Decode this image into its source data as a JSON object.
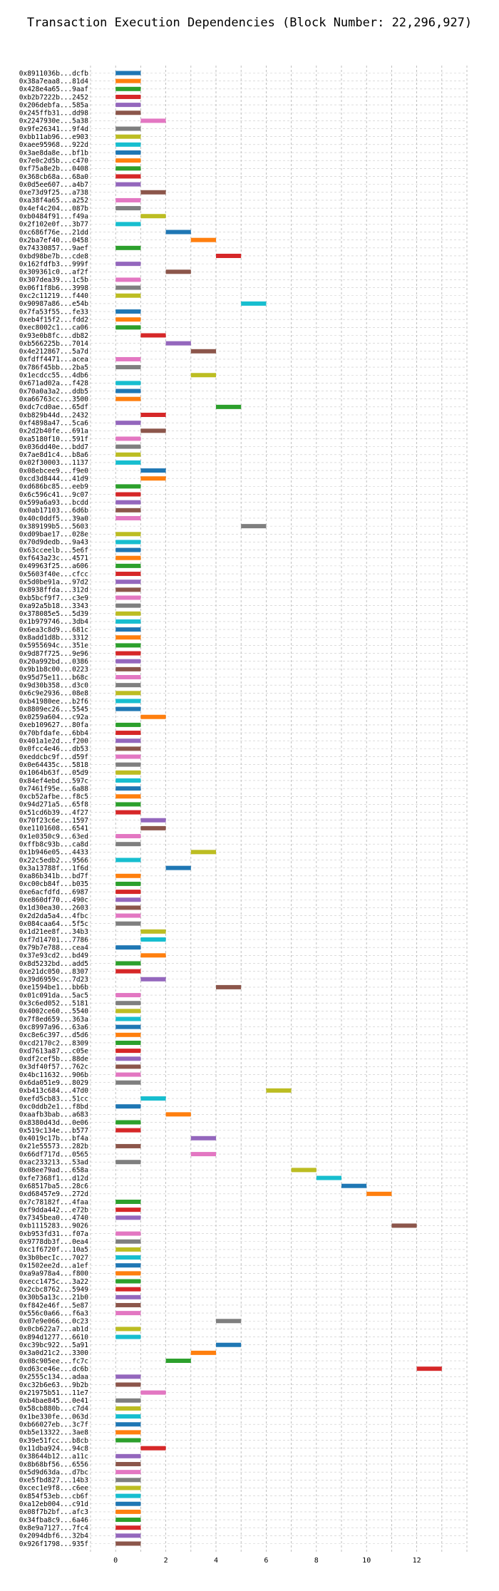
{
  "chart_data": {
    "type": "bar",
    "orientation": "horizontal",
    "title": "Transaction Execution Dependencies (Block Number: 22,296,927)",
    "xlabel": "",
    "ylabel": "",
    "xlim": [
      -1,
      14
    ],
    "xticks": [
      0,
      2,
      4,
      6,
      8,
      10,
      12
    ],
    "grid": true,
    "grid_style": "dashed",
    "bar_length": 1,
    "palette": [
      "#1f77b4",
      "#ff7f0e",
      "#2ca02c",
      "#d62728",
      "#9467bd",
      "#8c564b",
      "#e377c2",
      "#7f7f7f",
      "#bcbd22",
      "#17becf"
    ],
    "transactions": [
      {
        "label": "0x8911036b...dcfb",
        "start": 0
      },
      {
        "label": "0x38a7eaa8...81d4",
        "start": 0
      },
      {
        "label": "0x428e4a65...9aaf",
        "start": 0
      },
      {
        "label": "0xb2b7222b...2452",
        "start": 0
      },
      {
        "label": "0x206debfa...585a",
        "start": 0
      },
      {
        "label": "0x245ffb31...dd98",
        "start": 0
      },
      {
        "label": "0x2247930e...5a38",
        "start": 1
      },
      {
        "label": "0x9fe26341...9f4d",
        "start": 0
      },
      {
        "label": "0xbb11ab96...e903",
        "start": 0
      },
      {
        "label": "0xaee95968...922d",
        "start": 0
      },
      {
        "label": "0x3ae8da8e...bf1b",
        "start": 0
      },
      {
        "label": "0x7e0c2d5b...c470",
        "start": 0
      },
      {
        "label": "0xf75a8e2b...0408",
        "start": 0
      },
      {
        "label": "0x368cb68a...68a0",
        "start": 0
      },
      {
        "label": "0x0d5ee607...a4b7",
        "start": 0
      },
      {
        "label": "0xe73d9f25...a738",
        "start": 1
      },
      {
        "label": "0xa38f4a65...a252",
        "start": 0
      },
      {
        "label": "0x4ef4c204...087b",
        "start": 0
      },
      {
        "label": "0xb0484f91...f49a",
        "start": 1
      },
      {
        "label": "0x2f102e0f...3b77",
        "start": 0
      },
      {
        "label": "0xc686f76e...21dd",
        "start": 2
      },
      {
        "label": "0x2ba7ef40...0458",
        "start": 3
      },
      {
        "label": "0x74330857...9aef",
        "start": 0
      },
      {
        "label": "0xbd98be7b...cde8",
        "start": 4
      },
      {
        "label": "0x162fdfb3...999f",
        "start": 0
      },
      {
        "label": "0x309361c0...af2f",
        "start": 2
      },
      {
        "label": "0x307dea39...1c5b",
        "start": 0
      },
      {
        "label": "0x06f1f8b6...3998",
        "start": 0
      },
      {
        "label": "0xc2c11219...f440",
        "start": 0
      },
      {
        "label": "0x90987a86...e54b",
        "start": 5
      },
      {
        "label": "0x7fa53f55...fe33",
        "start": 0
      },
      {
        "label": "0xeb4f15f2...fdd2",
        "start": 0
      },
      {
        "label": "0xec8002c1...ca06",
        "start": 0
      },
      {
        "label": "0x93e0b8fc...db82",
        "start": 1
      },
      {
        "label": "0xb566225b...7014",
        "start": 2
      },
      {
        "label": "0x4e212867...5a7d",
        "start": 3
      },
      {
        "label": "0xfdff4471...acea",
        "start": 0
      },
      {
        "label": "0x786f45bb...2ba5",
        "start": 0
      },
      {
        "label": "0x1ecdcc55...4db6",
        "start": 3
      },
      {
        "label": "0x671ad02a...f428",
        "start": 0
      },
      {
        "label": "0x70a0a3a2...ddb5",
        "start": 0
      },
      {
        "label": "0xa66763cc...3500",
        "start": 0
      },
      {
        "label": "0xdc7cd0ae...65df",
        "start": 4
      },
      {
        "label": "0xb829b44d...2432",
        "start": 1
      },
      {
        "label": "0xf4898a47...5ca6",
        "start": 0
      },
      {
        "label": "0x2d2b40fe...691a",
        "start": 1
      },
      {
        "label": "0xa5180f10...591f",
        "start": 0
      },
      {
        "label": "0x036dd40e...bdd7",
        "start": 0
      },
      {
        "label": "0x7ae8d1c4...b8a6",
        "start": 0
      },
      {
        "label": "0x02f30003...1137",
        "start": 0
      },
      {
        "label": "0x08ebcee9...f9e0",
        "start": 1
      },
      {
        "label": "0xcd3d8444...41d9",
        "start": 1
      },
      {
        "label": "0xd686bc85...eeb9",
        "start": 0
      },
      {
        "label": "0x6c596c41...9c07",
        "start": 0
      },
      {
        "label": "0x599a6a93...bcdd",
        "start": 0
      },
      {
        "label": "0x0ab17103...6d6b",
        "start": 0
      },
      {
        "label": "0x40c0ddf5...39a0",
        "start": 0
      },
      {
        "label": "0x389199b5...5603",
        "start": 5
      },
      {
        "label": "0xd09bae17...028e",
        "start": 0
      },
      {
        "label": "0x70d9dedb...9a43",
        "start": 0
      },
      {
        "label": "0x63cceelb...5e6f",
        "start": 0
      },
      {
        "label": "0xf643a23c...4571",
        "start": 0
      },
      {
        "label": "0x49963f25...a606",
        "start": 0
      },
      {
        "label": "0x5603f40e...cfcc",
        "start": 0
      },
      {
        "label": "0x5d0be91a...97d2",
        "start": 0
      },
      {
        "label": "0x8938ffda...312d",
        "start": 0
      },
      {
        "label": "0xb5bcf9f7...c3e9",
        "start": 0
      },
      {
        "label": "0xa92a5b18...3343",
        "start": 0
      },
      {
        "label": "0x378085e5...5d39",
        "start": 0
      },
      {
        "label": "0x1b979746...3db4",
        "start": 0
      },
      {
        "label": "0x6ea3c8d9...681c",
        "start": 0
      },
      {
        "label": "0x8add1d8b...3312",
        "start": 0
      },
      {
        "label": "0x5955694c...351e",
        "start": 0
      },
      {
        "label": "0x9d87f725...9e96",
        "start": 0
      },
      {
        "label": "0x20a992bd...0386",
        "start": 0
      },
      {
        "label": "0x9b1b8c00...0223",
        "start": 0
      },
      {
        "label": "0x95d75e11...b68c",
        "start": 0
      },
      {
        "label": "0x9d30b358...d3c0",
        "start": 0
      },
      {
        "label": "0x6c9e2936...08e8",
        "start": 0
      },
      {
        "label": "0xb41980ee...b2f6",
        "start": 0
      },
      {
        "label": "0x8809ec26...5545",
        "start": 0
      },
      {
        "label": "0x0259a604...c92a",
        "start": 1
      },
      {
        "label": "0xeb109627...80fa",
        "start": 0
      },
      {
        "label": "0x70bfdafe...6bb4",
        "start": 0
      },
      {
        "label": "0x401a1e2d...f200",
        "start": 0
      },
      {
        "label": "0x0fcc4e46...db53",
        "start": 0
      },
      {
        "label": "0xeddcbc9f...d59f",
        "start": 0
      },
      {
        "label": "0x0e64435c...5818",
        "start": 0
      },
      {
        "label": "0x1064b63f...05d9",
        "start": 0
      },
      {
        "label": "0x84ef4ebd...597c",
        "start": 0
      },
      {
        "label": "0x7461f95e...6a88",
        "start": 0
      },
      {
        "label": "0xcb52afbe...f8c5",
        "start": 0
      },
      {
        "label": "0x94d271a5...65f8",
        "start": 0
      },
      {
        "label": "0x51cd6b39...4f27",
        "start": 0
      },
      {
        "label": "0x70f23c6e...1597",
        "start": 1
      },
      {
        "label": "0xe1101608...6541",
        "start": 1
      },
      {
        "label": "0x1e0350c9...63ed",
        "start": 0
      },
      {
        "label": "0xffb8c93b...ca8d",
        "start": 0
      },
      {
        "label": "0x1b946e05...4433",
        "start": 3
      },
      {
        "label": "0x22c5edb2...9566",
        "start": 0
      },
      {
        "label": "0x3a13788f...1f6d",
        "start": 2
      },
      {
        "label": "0xa86b341b...bd7f",
        "start": 0
      },
      {
        "label": "0xc00cb84f...b035",
        "start": 0
      },
      {
        "label": "0xe6acfdfd...6987",
        "start": 0
      },
      {
        "label": "0xe860df70...490c",
        "start": 0
      },
      {
        "label": "0x1d30ea30...2603",
        "start": 0
      },
      {
        "label": "0x2d2da5a4...4fbc",
        "start": 0
      },
      {
        "label": "0x084caa64...5f5c",
        "start": 0
      },
      {
        "label": "0x1d21ee8f...34b3",
        "start": 1
      },
      {
        "label": "0xf7d14701...7786",
        "start": 1
      },
      {
        "label": "0x79b7e788...cea4",
        "start": 0
      },
      {
        "label": "0x37e93cd2...bd49",
        "start": 1
      },
      {
        "label": "0x8d5232bd...add5",
        "start": 0
      },
      {
        "label": "0xe21dc050...8307",
        "start": 0
      },
      {
        "label": "0x39d6959c...7d23",
        "start": 1
      },
      {
        "label": "0xe1594be1...bb6b",
        "start": 4
      },
      {
        "label": "0x01c091da...5ac5",
        "start": 0
      },
      {
        "label": "0x3c6ed052...5181",
        "start": 0
      },
      {
        "label": "0x4002ce60...5540",
        "start": 0
      },
      {
        "label": "0x7f8ed659...363a",
        "start": 0
      },
      {
        "label": "0xc8997a96...63a6",
        "start": 0
      },
      {
        "label": "0xc8e6c397...d5d6",
        "start": 0
      },
      {
        "label": "0xcd2170c2...8309",
        "start": 0
      },
      {
        "label": "0xd7613a87...c05e",
        "start": 0
      },
      {
        "label": "0xdf2cef5b...88de",
        "start": 0
      },
      {
        "label": "0x3df40f57...762c",
        "start": 0
      },
      {
        "label": "0x4bc11632...906b",
        "start": 0
      },
      {
        "label": "0x6da051e9...8029",
        "start": 0
      },
      {
        "label": "0xb413c684...47d0",
        "start": 6
      },
      {
        "label": "0xefd5cb83...51cc",
        "start": 1
      },
      {
        "label": "0xc0ddb2e1...f8bd",
        "start": 0
      },
      {
        "label": "0xaafb3bab...a683",
        "start": 2
      },
      {
        "label": "0x8380d43d...0e06",
        "start": 0
      },
      {
        "label": "0x519c134e...b577",
        "start": 0
      },
      {
        "label": "0x4019c17b...bf4a",
        "start": 3
      },
      {
        "label": "0x21e55573...282b",
        "start": 0
      },
      {
        "label": "0x66df717d...0565",
        "start": 3
      },
      {
        "label": "0xac233213...53ad",
        "start": 0
      },
      {
        "label": "0x08ee79ad...658a",
        "start": 7
      },
      {
        "label": "0xfe7368f1...d12d",
        "start": 8
      },
      {
        "label": "0x68517ba5...28c6",
        "start": 9
      },
      {
        "label": "0xd68457e9...272d",
        "start": 10
      },
      {
        "label": "0x7c78182f...4faa",
        "start": 0
      },
      {
        "label": "0xf9dda442...e72b",
        "start": 0
      },
      {
        "label": "0x7345bea0...4740",
        "start": 0
      },
      {
        "label": "0xb1115283...9026",
        "start": 11
      },
      {
        "label": "0xb953fd31...f07a",
        "start": 0
      },
      {
        "label": "0x9778db3f...0ea4",
        "start": 0
      },
      {
        "label": "0xc1f6720f...10a5",
        "start": 0
      },
      {
        "label": "0x3b0becIc...7027",
        "start": 0
      },
      {
        "label": "0x1502ee2d...a1ef",
        "start": 0
      },
      {
        "label": "0xa9a978a4...f800",
        "start": 0
      },
      {
        "label": "0xecc1475c...3a22",
        "start": 0
      },
      {
        "label": "0x2cbc8762...5949",
        "start": 0
      },
      {
        "label": "0x30b5a13c...21b0",
        "start": 0
      },
      {
        "label": "0xf842e46f...5e87",
        "start": 0
      },
      {
        "label": "0x556c0a66...f6a3",
        "start": 0
      },
      {
        "label": "0x07e9e066...0c23",
        "start": 4
      },
      {
        "label": "0x0cb622a7...ab1d",
        "start": 0
      },
      {
        "label": "0x894d1277...6610",
        "start": 0
      },
      {
        "label": "0xc39bc922...5a91",
        "start": 4
      },
      {
        "label": "0x3a0d21c2...3300",
        "start": 3
      },
      {
        "label": "0x08c905ee...fc7c",
        "start": 2
      },
      {
        "label": "0xd63ce46e...dc6b",
        "start": 12
      },
      {
        "label": "0x2555c134...adaa",
        "start": 0
      },
      {
        "label": "0xc32b6e63...9b2b",
        "start": 0
      },
      {
        "label": "0x21975b51...11e7",
        "start": 1
      },
      {
        "label": "0xb4bae845...0e41",
        "start": 0
      },
      {
        "label": "0x58cb880b...c7d4",
        "start": 0
      },
      {
        "label": "0x1be330fe...063d",
        "start": 0
      },
      {
        "label": "0xb66027eb...3c7f",
        "start": 0
      },
      {
        "label": "0xb5e13322...3ae8",
        "start": 0
      },
      {
        "label": "0x39e51fcc...b8cb",
        "start": 0
      },
      {
        "label": "0x11dba924...94c8",
        "start": 1
      },
      {
        "label": "0x38644b12...a11c",
        "start": 0
      },
      {
        "label": "0x8b68bf56...6556",
        "start": 0
      },
      {
        "label": "0x5d9d63da...d7bc",
        "start": 0
      },
      {
        "label": "0xe5fbd827...14b3",
        "start": 0
      },
      {
        "label": "0xcec1e9f8...c6ee",
        "start": 0
      },
      {
        "label": "0x854f53eb...cb6f",
        "start": 0
      },
      {
        "label": "0xa12eb004...c91d",
        "start": 0
      },
      {
        "label": "0x08f7b2bf...afc3",
        "start": 0
      },
      {
        "label": "0x34fba8c9...6a46",
        "start": 0
      },
      {
        "label": "0x8e9a7127...7fc4",
        "start": 0
      },
      {
        "label": "0x2094dbf6...32b4",
        "start": 0
      },
      {
        "label": "0x926f1798...935f",
        "start": 0
      }
    ]
  }
}
